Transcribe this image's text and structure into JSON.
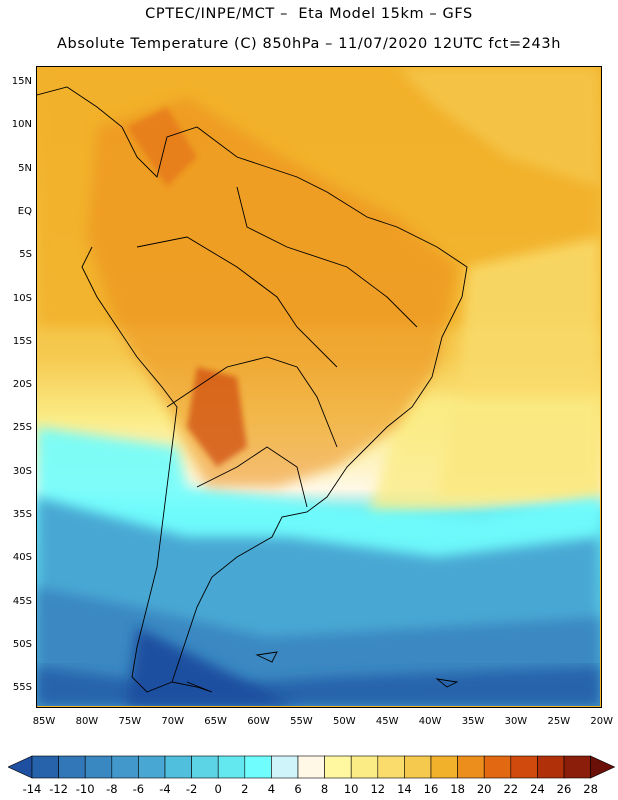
{
  "header": {
    "title_line1": "CPTEC/INPE/MCT –  Eta Model 15km – GFS",
    "title_line2": "Absolute Temperature (C) 850hPa – 11/07/2020 12UTC fct=243h"
  },
  "map": {
    "lat_labels": [
      "15N",
      "10N",
      "5N",
      "EQ",
      "5S",
      "10S",
      "15S",
      "20S",
      "25S",
      "30S",
      "35S",
      "40S",
      "45S",
      "50S",
      "55S"
    ],
    "lon_labels": [
      "85W",
      "80W",
      "75W",
      "70W",
      "65W",
      "60W",
      "55W",
      "50W",
      "45W",
      "40W",
      "35W",
      "30W",
      "25W",
      "20W"
    ]
  },
  "colorbar": {
    "labels": [
      "-14",
      "-12",
      "-10",
      "-8",
      "-6",
      "-4",
      "-2",
      "0",
      "2",
      "4",
      "6",
      "8",
      "10",
      "12",
      "14",
      "16",
      "18",
      "20",
      "22",
      "24",
      "26",
      "28"
    ],
    "colors": [
      "#1f4fa0",
      "#2763ab",
      "#3277b8",
      "#3a88c2",
      "#4298cb",
      "#48a8d3",
      "#4fbfdd",
      "#5cd4e6",
      "#64e8f0",
      "#6ffdfd",
      "#cff5fb",
      "#fff8e6",
      "#fff8a0",
      "#fbec86",
      "#f9dc6c",
      "#f5c84e",
      "#f2b12a",
      "#ec8e1c",
      "#e26812",
      "#cf4a0c",
      "#b0300a",
      "#8a1e0a",
      "#6a1008"
    ]
  }
}
